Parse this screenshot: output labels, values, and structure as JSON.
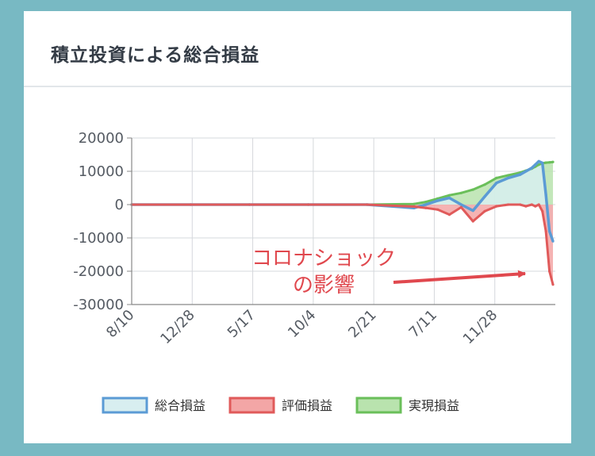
{
  "card": {
    "title": "積立投資による総合損益"
  },
  "chart_data": {
    "type": "area",
    "title": "積立投資による総合損益",
    "xlabel": "",
    "ylabel": "",
    "ylim": [
      -30000,
      20000
    ],
    "xlim": [
      0,
      36
    ],
    "grid": true,
    "legend_position": "bottom",
    "y_ticks": [
      "20000",
      "10000",
      "0",
      "-10000",
      "-20000",
      "-30000"
    ],
    "x_ticks": [
      "8/10",
      "12/28",
      "5/17",
      "10/4",
      "2/21",
      "7/11",
      "11/28"
    ],
    "x": [
      0,
      5,
      10,
      15,
      20,
      24,
      25,
      26,
      27,
      28,
      29,
      30,
      31,
      32,
      33,
      33.5,
      34,
      34.3,
      34.6,
      34.9,
      35.2,
      35.5,
      35.8
    ],
    "series": [
      {
        "name": "総合損益",
        "color": "#5b9bd5",
        "fill": "#d8eef0",
        "values": [
          0,
          0,
          0,
          0,
          0,
          -1000,
          0,
          1200,
          2000,
          0,
          -1800,
          2400,
          6500,
          8000,
          9000,
          10000,
          11000,
          12000,
          13000,
          12500,
          3000,
          -8000,
          -11000
        ]
      },
      {
        "name": "評価損益",
        "color": "#e05a5a",
        "fill": "#f3a6a6",
        "values": [
          0,
          0,
          0,
          0,
          0,
          -600,
          -1000,
          -1500,
          -3000,
          -800,
          -5000,
          -2000,
          -500,
          0,
          0,
          -500,
          0,
          -500,
          0,
          -2000,
          -8000,
          -20000,
          -24000
        ]
      },
      {
        "name": "実現損益",
        "color": "#6abf5a",
        "fill": "#b9e3ae",
        "values": [
          0,
          0,
          0,
          0,
          0,
          200,
          800,
          1800,
          2800,
          3500,
          4500,
          6000,
          8000,
          8800,
          9600,
          10200,
          10800,
          11400,
          12000,
          12400,
          12600,
          12700,
          12800
        ]
      }
    ],
    "annotation": {
      "line1": "コロナショック",
      "line2": "の影響"
    }
  }
}
